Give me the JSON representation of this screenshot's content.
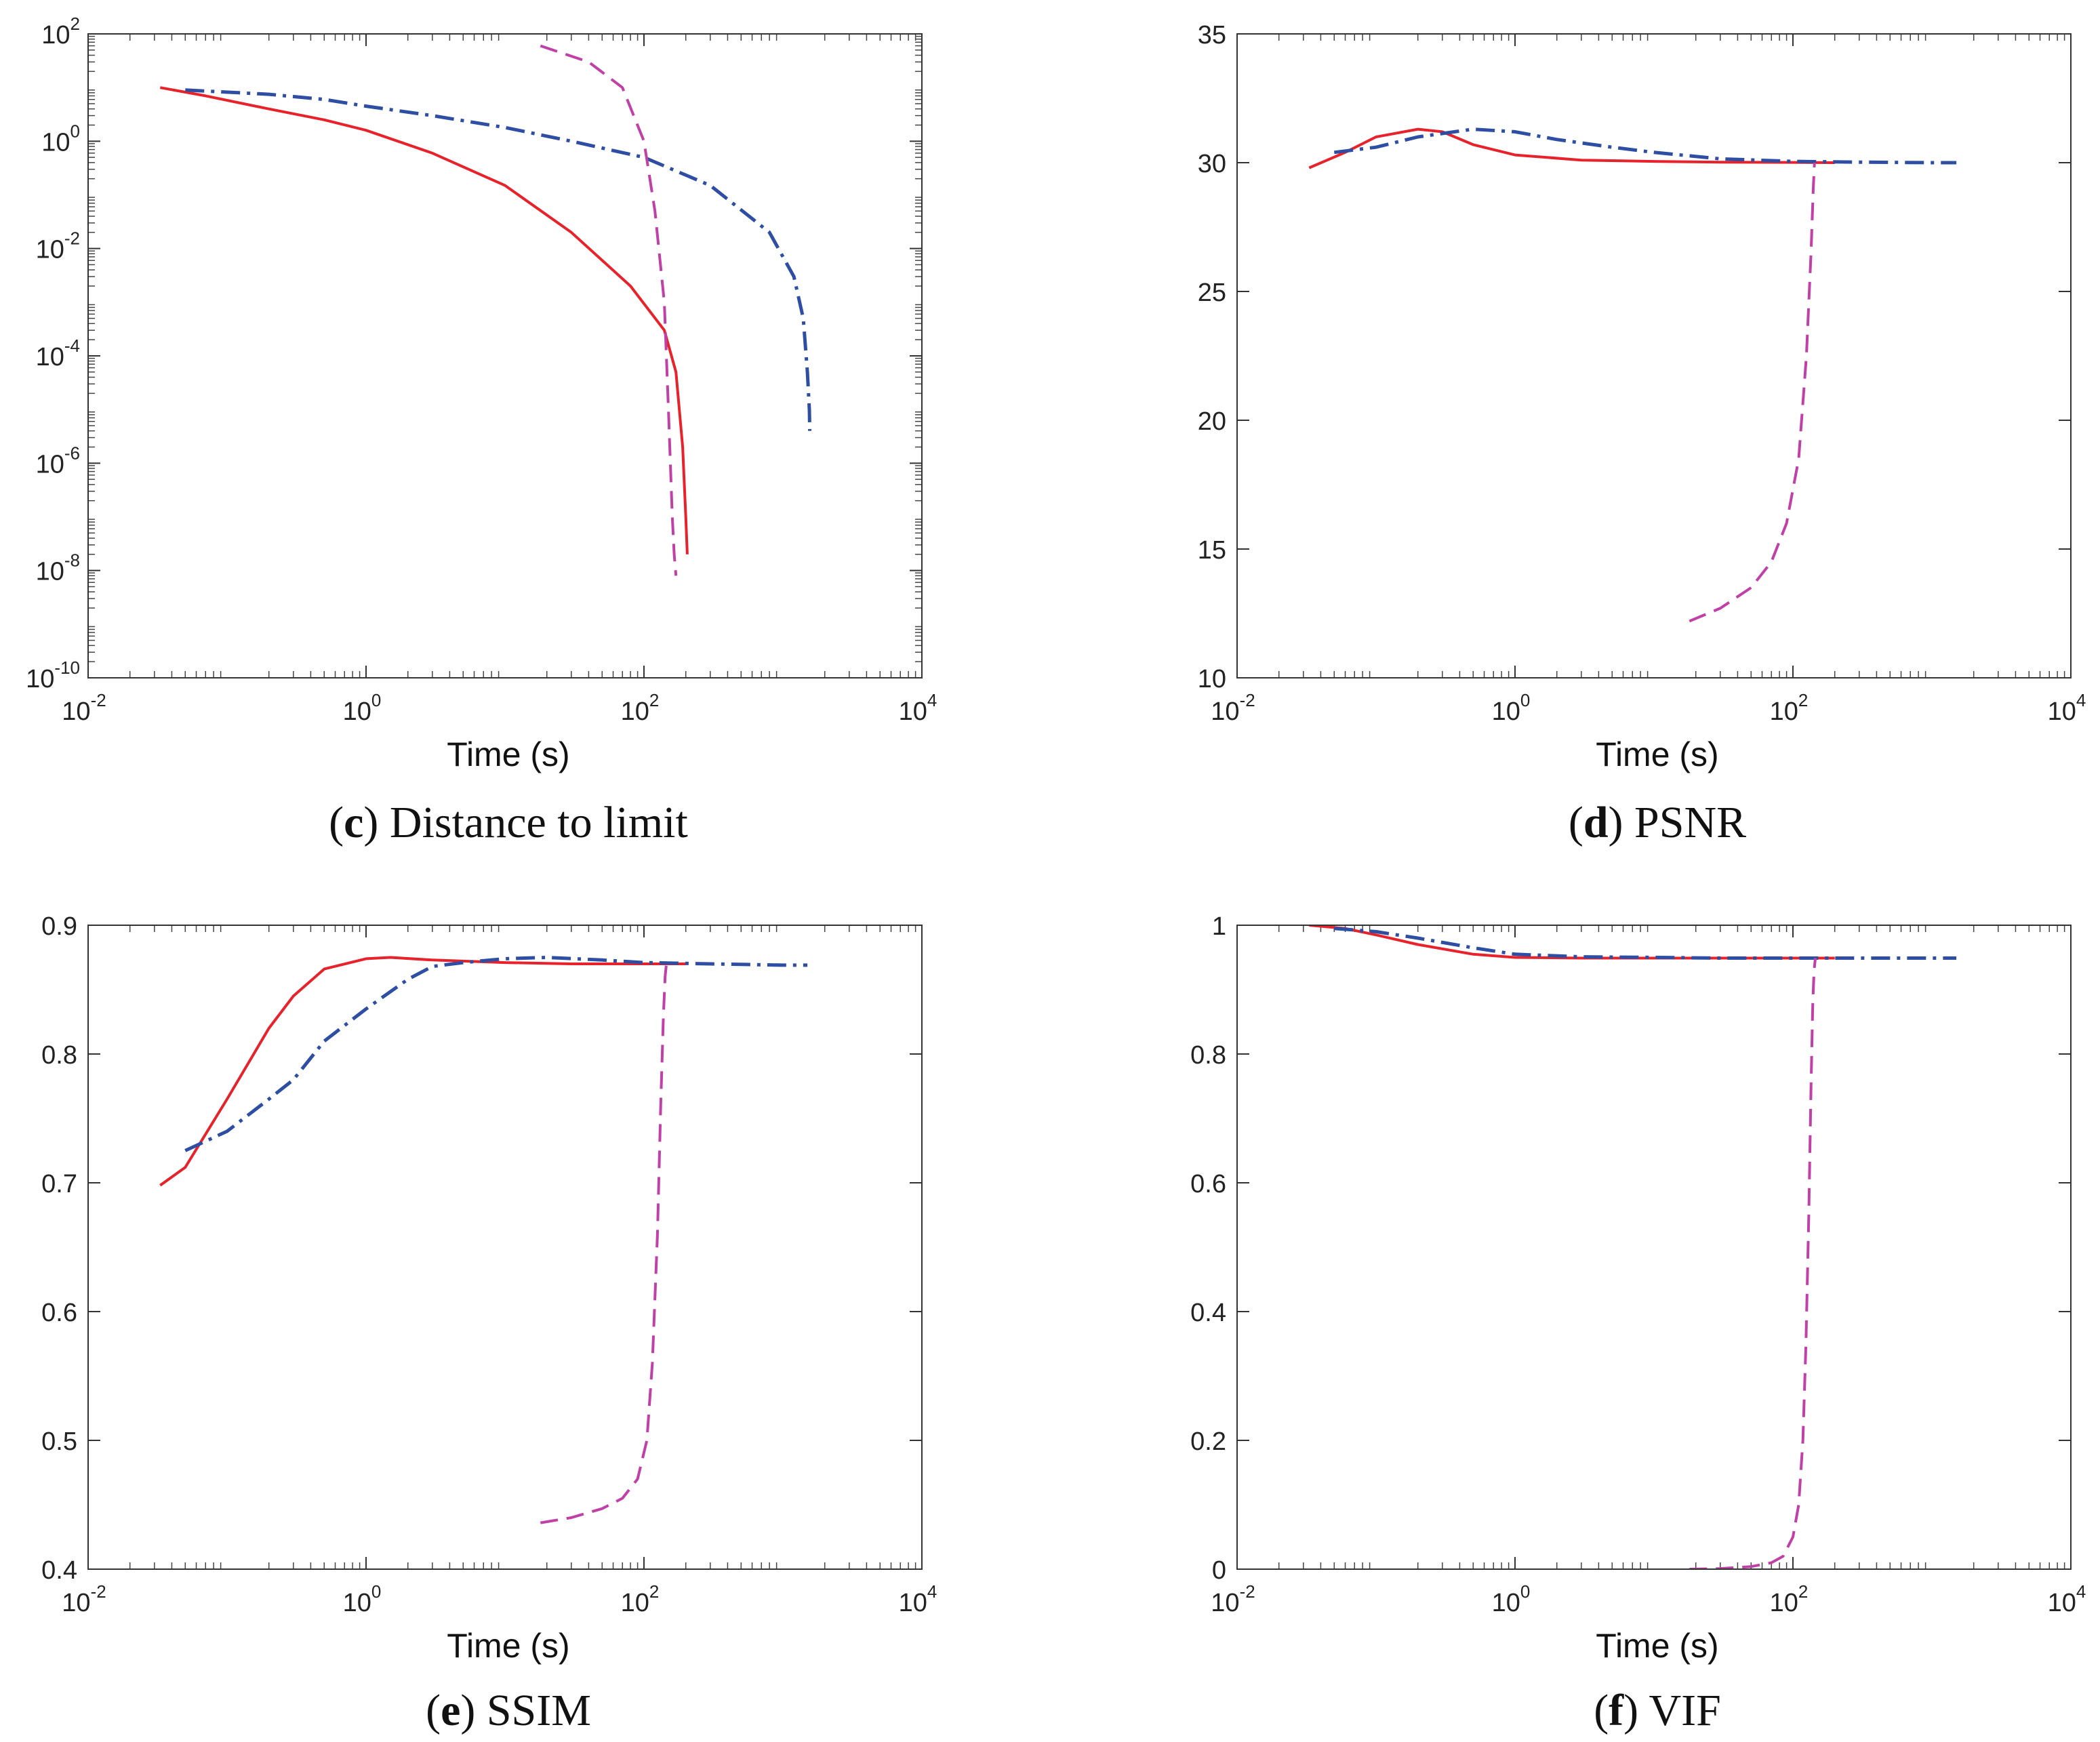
{
  "chart_data": [
    {
      "type": "line",
      "caption_letter": "c",
      "caption_text": "Distance to limit",
      "xlabel": "Time (s)",
      "ylabel": "",
      "xscale": "log",
      "yscale": "log",
      "xlim": [
        0.01,
        10000
      ],
      "ylim": [
        1e-10,
        100
      ],
      "xticks": [
        0.01,
        1,
        100,
        10000
      ],
      "xtick_labels": [
        [
          "10",
          "-2"
        ],
        [
          "10",
          "0"
        ],
        [
          "10",
          "2"
        ],
        [
          "10",
          "4"
        ]
      ],
      "yticks": [
        1e-10,
        1e-08,
        1e-06,
        0.0001,
        0.01,
        1,
        100
      ],
      "ytick_labels": [
        [
          "10",
          "-10"
        ],
        [
          "10",
          "-8"
        ],
        [
          "10",
          "-6"
        ],
        [
          "10",
          "-4"
        ],
        [
          "10",
          "-2"
        ],
        [
          "10",
          "0"
        ],
        [
          "10",
          "2"
        ]
      ],
      "series": [
        {
          "name": "red-solid",
          "color": "#e8222a",
          "dash": "solid",
          "x": [
            0.033,
            0.07,
            0.2,
            0.5,
            1,
            3,
            10,
            30,
            80,
            140,
            170,
            190,
            200,
            205
          ],
          "y": [
            10,
            7,
            4,
            2.5,
            1.6,
            0.6,
            0.15,
            0.02,
            0.002,
            0.0003,
            5e-05,
            2e-06,
            1e-07,
            2e-08
          ]
        },
        {
          "name": "blue-dashdot",
          "color": "#2e4ea3",
          "dash": "dashdot",
          "x": [
            0.05,
            0.2,
            0.5,
            1,
            3,
            10,
            30,
            100,
            300,
            800,
            1200,
            1400,
            1500,
            1550,
            1560
          ],
          "y": [
            9,
            7.5,
            6,
            4.5,
            3,
            1.8,
            1,
            0.5,
            0.15,
            0.02,
            0.003,
            0.0005,
            5e-05,
            1e-05,
            4e-06
          ]
        },
        {
          "name": "magenta-dashed",
          "color": "#c040a8",
          "dash": "dashed",
          "x": [
            18,
            40,
            70,
            100,
            120,
            140,
            150,
            160,
            165,
            170
          ],
          "y": [
            60,
            30,
            10,
            1,
            0.05,
            0.001,
            1e-05,
            1e-07,
            2e-08,
            8e-09
          ]
        }
      ]
    },
    {
      "type": "line",
      "caption_letter": "d",
      "caption_text": "PSNR",
      "xlabel": "Time (s)",
      "ylabel": "",
      "xscale": "log",
      "yscale": "linear",
      "xlim": [
        0.01,
        10000
      ],
      "ylim": [
        10,
        35
      ],
      "xticks": [
        0.01,
        1,
        100,
        10000
      ],
      "xtick_labels": [
        [
          "10",
          "-2"
        ],
        [
          "10",
          "0"
        ],
        [
          "10",
          "2"
        ],
        [
          "10",
          "4"
        ]
      ],
      "yticks": [
        10,
        15,
        20,
        25,
        30,
        35
      ],
      "ytick_labels": [
        [
          "10",
          ""
        ],
        [
          "15",
          ""
        ],
        [
          "20",
          ""
        ],
        [
          "25",
          ""
        ],
        [
          "30",
          ""
        ],
        [
          "35",
          ""
        ]
      ],
      "series": [
        {
          "name": "red-solid",
          "color": "#e8222a",
          "dash": "solid",
          "x": [
            0.033,
            0.06,
            0.1,
            0.2,
            0.3,
            0.5,
            1,
            3,
            10,
            30,
            100,
            200
          ],
          "y": [
            29.8,
            30.4,
            31.0,
            31.3,
            31.2,
            30.7,
            30.3,
            30.1,
            30.05,
            30.02,
            30.01,
            30.0
          ]
        },
        {
          "name": "blue-dashdot",
          "color": "#2e4ea3",
          "dash": "dashdot",
          "x": [
            0.05,
            0.1,
            0.2,
            0.5,
            1,
            2,
            5,
            10,
            30,
            100,
            300,
            1000,
            1500
          ],
          "y": [
            30.4,
            30.6,
            31.0,
            31.3,
            31.2,
            30.9,
            30.6,
            30.4,
            30.15,
            30.05,
            30.02,
            30.0,
            30.0
          ]
        },
        {
          "name": "magenta-dashed",
          "color": "#c040a8",
          "dash": "dashed",
          "x": [
            18,
            30,
            50,
            70,
            90,
            110,
            125,
            135,
            140,
            143
          ],
          "y": [
            12.2,
            12.7,
            13.5,
            14.5,
            16.0,
            18.5,
            22.5,
            26.5,
            29.0,
            30.0
          ]
        }
      ]
    },
    {
      "type": "line",
      "caption_letter": "e",
      "caption_text": "SSIM",
      "xlabel": "Time (s)",
      "ylabel": "",
      "xscale": "log",
      "yscale": "linear",
      "xlim": [
        0.01,
        10000
      ],
      "ylim": [
        0.4,
        0.9
      ],
      "xticks": [
        0.01,
        1,
        100,
        10000
      ],
      "xtick_labels": [
        [
          "10",
          "-2"
        ],
        [
          "10",
          "0"
        ],
        [
          "10",
          "2"
        ],
        [
          "10",
          "4"
        ]
      ],
      "yticks": [
        0.4,
        0.5,
        0.6,
        0.7,
        0.8,
        0.9
      ],
      "ytick_labels": [
        [
          "0.4",
          ""
        ],
        [
          "0.5",
          ""
        ],
        [
          "0.6",
          ""
        ],
        [
          "0.7",
          ""
        ],
        [
          "0.8",
          ""
        ],
        [
          "0.9",
          ""
        ]
      ],
      "series": [
        {
          "name": "red-solid",
          "color": "#e8222a",
          "dash": "solid",
          "x": [
            0.033,
            0.05,
            0.1,
            0.2,
            0.3,
            0.5,
            1,
            1.5,
            3,
            10,
            30,
            100,
            200
          ],
          "y": [
            0.698,
            0.712,
            0.765,
            0.82,
            0.845,
            0.866,
            0.874,
            0.875,
            0.873,
            0.871,
            0.87,
            0.87,
            0.87
          ]
        },
        {
          "name": "blue-dashdot",
          "color": "#2e4ea3",
          "dash": "dashdot",
          "x": [
            0.05,
            0.1,
            0.2,
            0.3,
            0.5,
            1,
            2,
            3,
            5,
            10,
            20,
            50,
            100,
            300,
            1000,
            1500
          ],
          "y": [
            0.725,
            0.74,
            0.765,
            0.78,
            0.81,
            0.835,
            0.858,
            0.868,
            0.871,
            0.874,
            0.875,
            0.873,
            0.871,
            0.87,
            0.869,
            0.869
          ]
        },
        {
          "name": "magenta-dashed",
          "color": "#c040a8",
          "dash": "dashed",
          "x": [
            18,
            30,
            50,
            70,
            90,
            105,
            115,
            125,
            132,
            138,
            142,
            145
          ],
          "y": [
            0.436,
            0.44,
            0.447,
            0.455,
            0.47,
            0.5,
            0.56,
            0.66,
            0.76,
            0.83,
            0.86,
            0.87
          ]
        }
      ]
    },
    {
      "type": "line",
      "caption_letter": "f",
      "caption_text": "VIF",
      "xlabel": "Time (s)",
      "ylabel": "",
      "xscale": "log",
      "yscale": "linear",
      "xlim": [
        0.01,
        10000
      ],
      "ylim": [
        0,
        1
      ],
      "xticks": [
        0.01,
        1,
        100,
        10000
      ],
      "xtick_labels": [
        [
          "10",
          "-2"
        ],
        [
          "10",
          "0"
        ],
        [
          "10",
          "2"
        ],
        [
          "10",
          "4"
        ]
      ],
      "yticks": [
        0,
        0.2,
        0.4,
        0.6,
        0.8,
        1
      ],
      "ytick_labels": [
        [
          "0",
          ""
        ],
        [
          "0.2",
          ""
        ],
        [
          "0.4",
          ""
        ],
        [
          "0.6",
          ""
        ],
        [
          "0.8",
          ""
        ],
        [
          "1",
          ""
        ]
      ],
      "series": [
        {
          "name": "red-solid",
          "color": "#e8222a",
          "dash": "solid",
          "x": [
            0.033,
            0.06,
            0.1,
            0.2,
            0.5,
            1,
            3,
            10,
            30,
            100,
            200
          ],
          "y": [
            1.0,
            0.995,
            0.985,
            0.97,
            0.955,
            0.95,
            0.949,
            0.949,
            0.949,
            0.949,
            0.949
          ]
        },
        {
          "name": "blue-dashdot",
          "color": "#2e4ea3",
          "dash": "dashdot",
          "x": [
            0.05,
            0.1,
            0.2,
            0.5,
            1,
            3,
            10,
            30,
            100,
            300,
            1000,
            1500
          ],
          "y": [
            0.995,
            0.99,
            0.98,
            0.965,
            0.955,
            0.951,
            0.95,
            0.949,
            0.949,
            0.949,
            0.949,
            0.949
          ]
        },
        {
          "name": "magenta-dashed",
          "color": "#c040a8",
          "dash": "dashed",
          "x": [
            18,
            30,
            50,
            70,
            85,
            100,
            110,
            118,
            124,
            130,
            135,
            139,
            142,
            145
          ],
          "y": [
            0.0,
            0.001,
            0.004,
            0.01,
            0.02,
            0.05,
            0.1,
            0.2,
            0.35,
            0.55,
            0.75,
            0.88,
            0.93,
            0.949
          ]
        }
      ]
    }
  ]
}
